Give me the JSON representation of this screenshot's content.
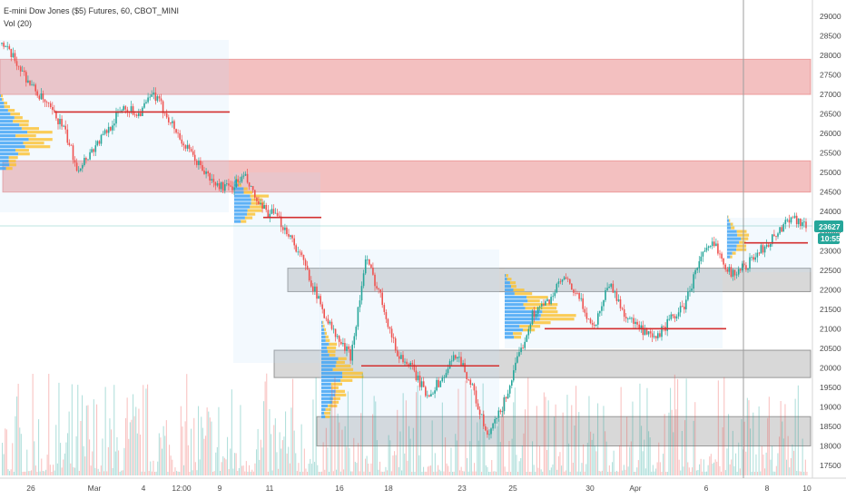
{
  "legend": {
    "symbol_line": "E-mini Dow Jones ($5) Futures, 60, CBOT_MINI",
    "indicator_line": "Vol (20)"
  },
  "price_axis": {
    "ticks": [
      29000,
      28500,
      28000,
      27500,
      27000,
      26500,
      26000,
      25500,
      25000,
      24500,
      24000,
      23500,
      23000,
      22500,
      22000,
      21500,
      21000,
      20500,
      20000,
      19500,
      19000,
      18500,
      18000,
      17500
    ]
  },
  "time_axis": {
    "labels": [
      "26",
      "Mar",
      "4",
      "12:00",
      "9",
      "11",
      "16",
      "18",
      "23",
      "25",
      "30",
      "Apr",
      "6",
      "8",
      "10"
    ]
  },
  "last_price": {
    "value": "23627",
    "countdown": "10:55",
    "color": "#26a69a"
  },
  "colors": {
    "up": "#26a69a",
    "down": "#ef5350",
    "resistance_zone": "#e57373",
    "support_zone": "#9e9e9e",
    "poc_line": "#d32f2f",
    "profile_up": "#42a5f5",
    "profile_down": "#fbc02d"
  },
  "chart_data": {
    "type": "candlestick",
    "title": "E-mini Dow Jones ($5) Futures, 60, CBOT_MINI",
    "ylim": [
      17500,
      29000
    ],
    "x_labels": [
      "26",
      "Mar",
      "4",
      "12:00",
      "9",
      "11",
      "16",
      "18",
      "23",
      "25",
      "30",
      "Apr",
      "6",
      "8",
      "10"
    ],
    "last_value": 23627,
    "price_path_approx": [
      28300,
      27800,
      27200,
      26700,
      26200,
      25100,
      25600,
      26100,
      26700,
      26500,
      27000,
      26400,
      25700,
      25200,
      24700,
      24600,
      24900,
      24100,
      23900,
      23400,
      22600,
      21600,
      20800,
      20300,
      22800,
      21800,
      20400,
      20000,
      19300,
      19700,
      20400,
      19500,
      18200,
      19000,
      20200,
      21400,
      21700,
      22300,
      21800,
      21000,
      22200,
      21400,
      21000,
      20700,
      21200,
      21600,
      22800,
      23200,
      22400,
      22600,
      23000,
      23400,
      23900,
      23627
    ],
    "resistance_zones": [
      [
        27000,
        27900
      ],
      [
        24500,
        25300
      ]
    ],
    "support_zones": [
      [
        21950,
        22550
      ],
      [
        19750,
        20450
      ],
      [
        18000,
        18750
      ]
    ],
    "poc_levels": [
      26550,
      23850,
      20050,
      21000,
      23200
    ]
  }
}
